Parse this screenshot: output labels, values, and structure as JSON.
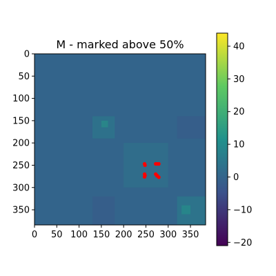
{
  "chart_data": {
    "type": "heatmap",
    "title": "M - marked above 50%",
    "xlabel": "",
    "ylabel": "",
    "x_ticks": [
      0,
      50,
      100,
      150,
      200,
      250,
      300,
      350
    ],
    "y_ticks": [
      0,
      50,
      100,
      150,
      200,
      250,
      300,
      350
    ],
    "xlim": [
      0,
      384
    ],
    "ylim": [
      384,
      0
    ],
    "grid": false,
    "colormap": "viridis",
    "colorbar": {
      "range": [
        -21,
        44
      ],
      "ticks": [
        -20,
        -10,
        0,
        10,
        20,
        30,
        40
      ]
    },
    "background_value": 0,
    "blocks": [
      {
        "rows": [
          140,
          190
        ],
        "cols": [
          130,
          180
        ],
        "value": 6
      },
      {
        "rows": [
          140,
          190
        ],
        "cols": [
          320,
          384
        ],
        "value": -3
      },
      {
        "rows": [
          200,
          300
        ],
        "cols": [
          200,
          300
        ],
        "value": 4
      },
      {
        "rows": [
          320,
          384
        ],
        "cols": [
          130,
          180
        ],
        "value": -3
      },
      {
        "rows": [
          320,
          384
        ],
        "cols": [
          320,
          384
        ],
        "value": 7
      },
      {
        "rows": [
          150,
          165
        ],
        "cols": [
          150,
          165
        ],
        "value": 13
      },
      {
        "rows": [
          340,
          360
        ],
        "cols": [
          330,
          350
        ],
        "value": 12
      }
    ],
    "marked_points": [
      {
        "x": 247,
        "y": 247
      },
      {
        "x": 248,
        "y": 250
      },
      {
        "x": 272,
        "y": 247
      },
      {
        "x": 275,
        "y": 247
      },
      {
        "x": 279,
        "y": 247
      },
      {
        "x": 247,
        "y": 270
      },
      {
        "x": 248,
        "y": 273
      },
      {
        "x": 247,
        "y": 276
      },
      {
        "x": 272,
        "y": 270
      },
      {
        "x": 275,
        "y": 273
      },
      {
        "x": 279,
        "y": 277
      },
      {
        "x": 275,
        "y": 274
      }
    ],
    "marker_color": "#ff0000"
  }
}
